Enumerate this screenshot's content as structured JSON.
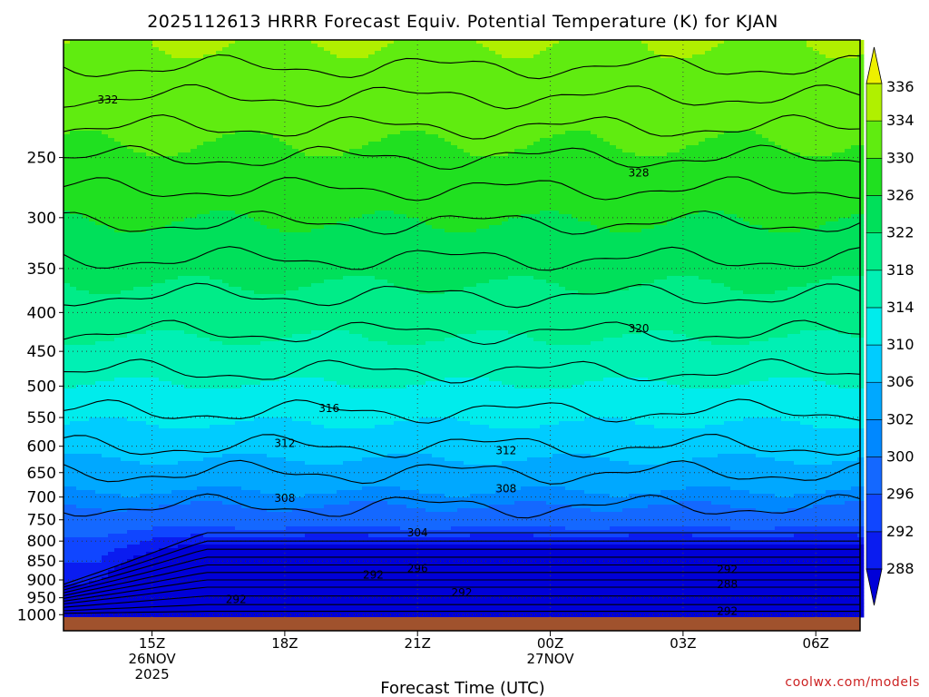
{
  "chart_data": {
    "type": "heatmap",
    "title": "2025112613 HRRR Forecast Equiv. Potential Temperature (K) for KJAN",
    "xlabel": "Forecast Time (UTC)",
    "credit": "coolwx.com/models",
    "x_ticks": [
      {
        "hour": 2,
        "lines": [
          "15Z",
          "26NOV",
          "2025"
        ]
      },
      {
        "hour": 5,
        "lines": [
          "18Z"
        ]
      },
      {
        "hour": 8,
        "lines": [
          "21Z"
        ]
      },
      {
        "hour": 11,
        "lines": [
          "00Z",
          "27NOV"
        ]
      },
      {
        "hour": 14,
        "lines": [
          "03Z"
        ]
      },
      {
        "hour": 17,
        "lines": [
          "06Z"
        ]
      }
    ],
    "xlim_hours": [
      0,
      18
    ],
    "y_scale": "log",
    "ylim_hpa": [
      1050,
      175
    ],
    "y_ticks": [
      250,
      300,
      350,
      400,
      450,
      500,
      550,
      600,
      650,
      700,
      750,
      800,
      850,
      900,
      950,
      1000
    ],
    "colorbar": {
      "levels": [
        288,
        292,
        296,
        300,
        302,
        306,
        310,
        314,
        318,
        322,
        326,
        330,
        334,
        336
      ],
      "colors": [
        "#0000d8",
        "#0a1cf0",
        "#1046ff",
        "#1468ff",
        "#0088ff",
        "#00a8ff",
        "#00ccff",
        "#00ecec",
        "#00f0b4",
        "#00ec88",
        "#00e05a",
        "#20e020",
        "#60ec10",
        "#b0f000",
        "#eef000"
      ],
      "extend": "both"
    },
    "contour_labels": [
      {
        "value": "332",
        "hour": 1.0,
        "hpa": 210
      },
      {
        "value": "328",
        "hour": 13.0,
        "hpa": 262
      },
      {
        "value": "320",
        "hour": 13.0,
        "hpa": 420
      },
      {
        "value": "316",
        "hour": 6.0,
        "hpa": 535
      },
      {
        "value": "312",
        "hour": 5.0,
        "hpa": 595
      },
      {
        "value": "312",
        "hour": 10.0,
        "hpa": 608
      },
      {
        "value": "308",
        "hour": 5.0,
        "hpa": 703
      },
      {
        "value": "308",
        "hour": 10.0,
        "hpa": 683
      },
      {
        "value": "304",
        "hour": 8.0,
        "hpa": 780
      },
      {
        "value": "296",
        "hour": 8.0,
        "hpa": 870
      },
      {
        "value": "292",
        "hour": 7.0,
        "hpa": 886
      },
      {
        "value": "292",
        "hour": 9.0,
        "hpa": 935
      },
      {
        "value": "292",
        "hour": 3.9,
        "hpa": 955
      },
      {
        "value": "292",
        "hour": 15.0,
        "hpa": 872
      },
      {
        "value": "288",
        "hour": 15.0,
        "hpa": 912
      },
      {
        "value": "292",
        "hour": 15.0,
        "hpa": 990
      }
    ]
  }
}
